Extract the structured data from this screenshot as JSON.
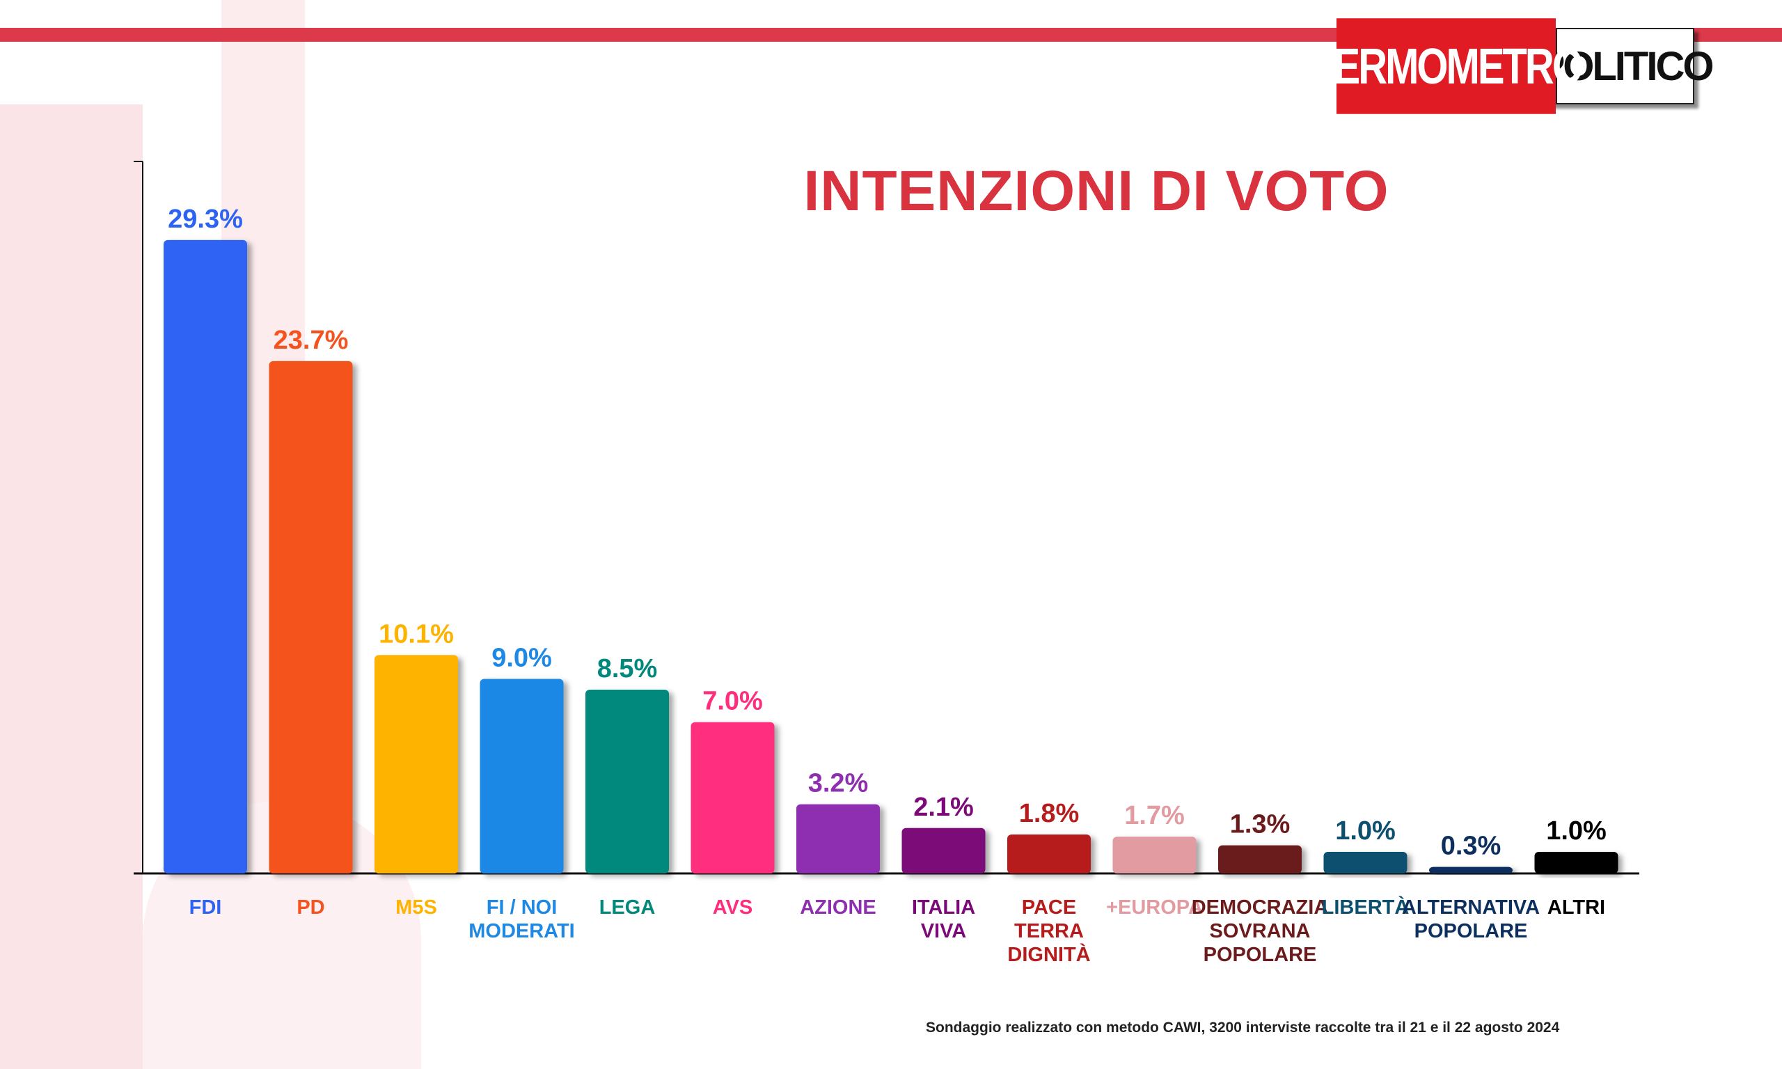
{
  "brand": {
    "left": "TERMOMETRO",
    "right": "POLITICO"
  },
  "title": "INTENZIONI DI VOTO",
  "footnote": "Sondaggio realizzato con metodo CAWI, 3200 interviste raccolte tra il 21 e il 22 agosto 2024",
  "chart_data": {
    "type": "bar",
    "title": "INTENZIONI DI VOTO",
    "xlabel": "",
    "ylabel": "",
    "ylim": [
      0,
      33
    ],
    "grid": false,
    "bars": [
      {
        "name": "FDI",
        "lines": [
          "FDI"
        ],
        "value": 29.3,
        "label": "29.3%",
        "color": "#2d63f3",
        "text_color": "#2d63f3"
      },
      {
        "name": "PD",
        "lines": [
          "PD"
        ],
        "value": 23.7,
        "label": "23.7%",
        "color": "#f4521e",
        "text_color": "#f4521e"
      },
      {
        "name": "M5S",
        "lines": [
          "M5S"
        ],
        "value": 10.1,
        "label": "10.1%",
        "color": "#fdb300",
        "text_color": "#fdb300"
      },
      {
        "name": "FI / NOI MODERATI",
        "lines": [
          "FI / NOI",
          "MODERATI"
        ],
        "value": 9.0,
        "label": "9.0%",
        "color": "#1e88e5",
        "text_color": "#1e88e5"
      },
      {
        "name": "LEGA",
        "lines": [
          "LEGA"
        ],
        "value": 8.5,
        "label": "8.5%",
        "color": "#00897b",
        "text_color": "#00897b"
      },
      {
        "name": "AVS",
        "lines": [
          "AVS"
        ],
        "value": 7.0,
        "label": "7.0%",
        "color": "#ff2d7e",
        "text_color": "#ff2d7e"
      },
      {
        "name": "AZIONE",
        "lines": [
          "AZIONE"
        ],
        "value": 3.2,
        "label": "3.2%",
        "color": "#8e2fb0",
        "text_color": "#8e2fb0"
      },
      {
        "name": "ITALIA VIVA",
        "lines": [
          "ITALIA",
          "VIVA"
        ],
        "value": 2.1,
        "label": "2.1%",
        "color": "#7b0a78",
        "text_color": "#7b0a78"
      },
      {
        "name": "PACE TERRA DIGNITÀ",
        "lines": [
          "PACE",
          "TERRA",
          "DIGNITÀ"
        ],
        "value": 1.8,
        "label": "1.8%",
        "color": "#b71c1c",
        "text_color": "#b71c1c"
      },
      {
        "name": "+EUROPA",
        "lines": [
          "+EUROPA"
        ],
        "value": 1.7,
        "label": "1.7%",
        "color": "#e29ba1",
        "text_color": "#e29ba1"
      },
      {
        "name": "DEMOCRAZIA SOVRANA POPOLARE",
        "lines": [
          "DEMOCRAZIA",
          "SOVRANA",
          "POPOLARE"
        ],
        "value": 1.3,
        "label": "1.3%",
        "color": "#6b1b1b",
        "text_color": "#6b1b1b"
      },
      {
        "name": "LIBERTÀ",
        "lines": [
          "LIBERTÀ"
        ],
        "value": 1.0,
        "label": "1.0%",
        "color": "#0d4f6e",
        "text_color": "#0d4f6e"
      },
      {
        "name": "ALTERNATIVA POPOLARE",
        "lines": [
          "ALTERNATIVA",
          "POPOLARE"
        ],
        "value": 0.3,
        "label": "0.3%",
        "color": "#0d2f5e",
        "text_color": "#0d2f5e"
      },
      {
        "name": "ALTRI",
        "lines": [
          "ALTRI"
        ],
        "value": 1.0,
        "label": "1.0%",
        "color": "#000000",
        "text_color": "#000000"
      }
    ]
  }
}
